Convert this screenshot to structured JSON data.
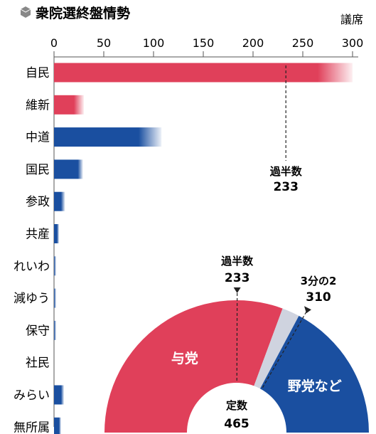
{
  "title": "衆院選終盤情勢",
  "unit_label": "議席",
  "chart_data": [
    {
      "type": "bar",
      "orientation": "horizontal",
      "xlim": [
        0,
        300
      ],
      "ticks": [
        0,
        50,
        100,
        150,
        200,
        250,
        300
      ],
      "categories": [
        "自民",
        "維新",
        "中道",
        "国民",
        "参政",
        "共産",
        "れいわ",
        "減ゆう",
        "保守",
        "社民",
        "みらい",
        "無所属"
      ],
      "ranges": [
        {
          "low": 265,
          "high": 300
        },
        {
          "low": 20,
          "high": 30
        },
        {
          "low": 85,
          "high": 108
        },
        {
          "low": 24,
          "high": 29
        },
        {
          "low": 7,
          "high": 11
        },
        {
          "low": 3,
          "high": 5
        },
        {
          "low": 0,
          "high": 2
        },
        {
          "low": 0,
          "high": 1
        },
        {
          "low": 0,
          "high": 1
        },
        {
          "low": 0,
          "high": 0
        },
        {
          "low": 7,
          "high": 10
        },
        {
          "low": 5,
          "high": 7
        }
      ],
      "colors": {
        "ruling": "#e0405a",
        "opposition": "#1a4fa0"
      },
      "party_side": [
        "ruling",
        "ruling",
        "opposition",
        "opposition",
        "opposition",
        "opposition",
        "opposition",
        "opposition",
        "opposition",
        "opposition",
        "opposition",
        "opposition"
      ],
      "reference_line": {
        "label": "過半数",
        "value": 233
      }
    },
    {
      "type": "pie",
      "style": "half-donut",
      "total_label": "定数",
      "total": 465,
      "markers": [
        {
          "label": "過半数",
          "value": 233
        },
        {
          "label": "3分の2",
          "value": 310
        }
      ],
      "segments": [
        {
          "label": "与党",
          "value": 285,
          "color": "#e0405a"
        },
        {
          "label": "",
          "value": 20,
          "color": "#cfd3df"
        },
        {
          "label": "野党など",
          "value": 160,
          "color": "#1a4fa0"
        }
      ]
    }
  ]
}
